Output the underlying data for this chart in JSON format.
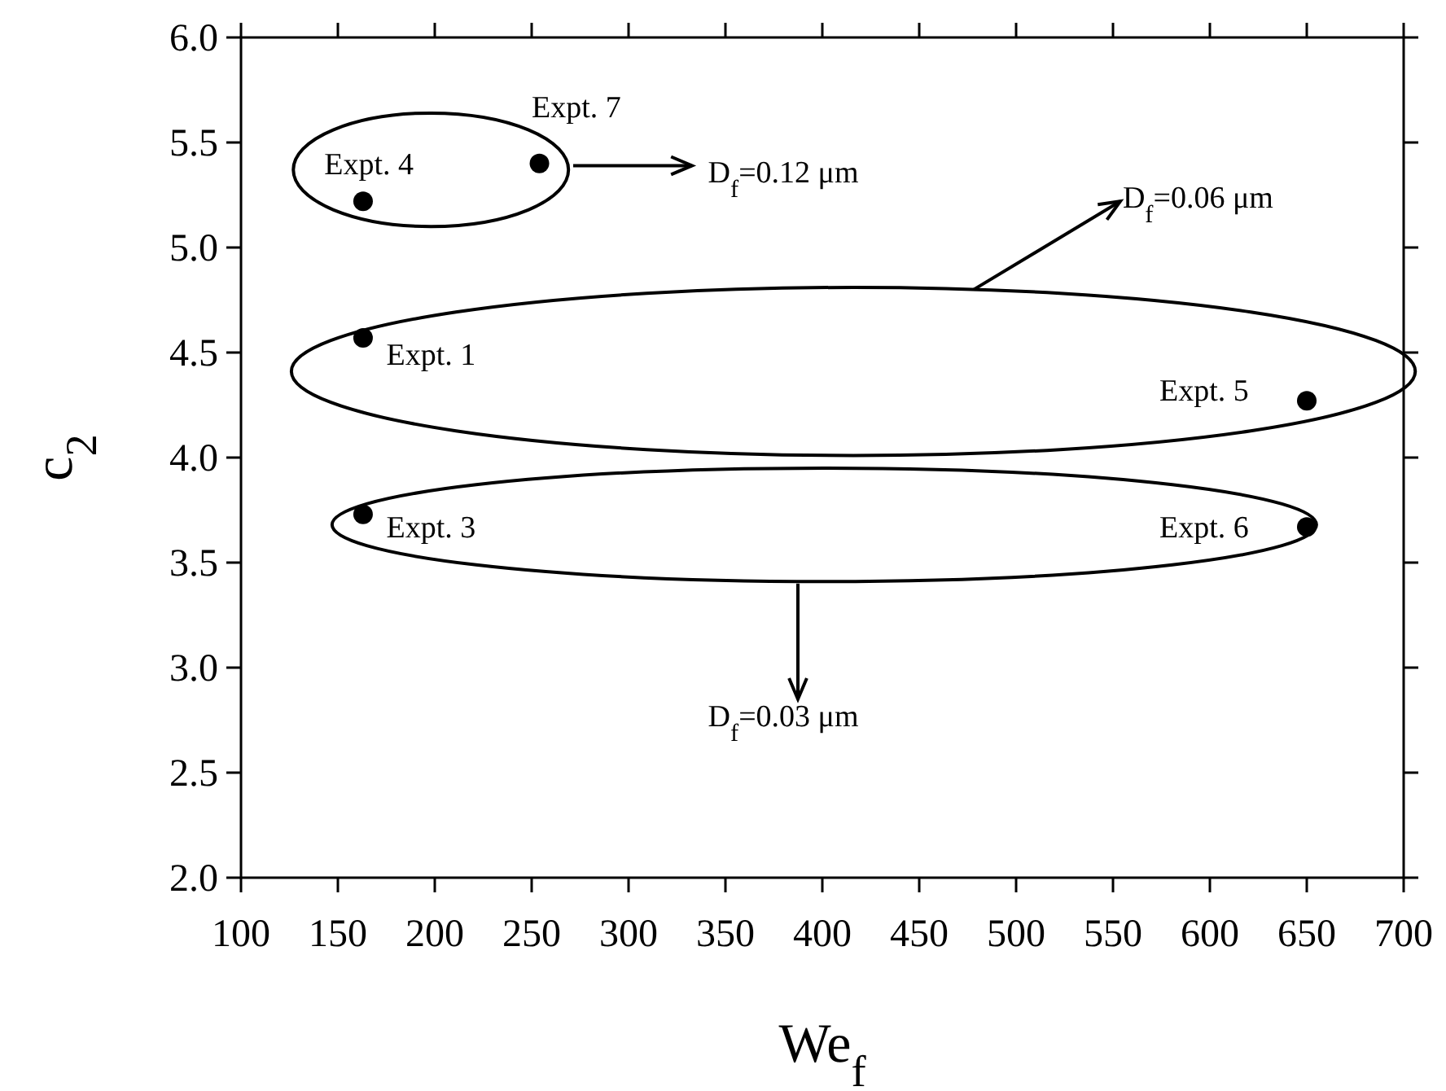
{
  "chart_data": {
    "type": "scatter",
    "xlabel": "We$_{f}$",
    "ylabel": "c$_{2}$",
    "x": [
      163,
      254,
      163,
      650,
      163,
      650
    ],
    "series": [
      {
        "color": "#000000",
        "values": [
          5.22,
          5.4,
          4.57,
          4.27,
          3.73,
          3.67
        ]
      }
    ],
    "marker": "circle",
    "grid": false,
    "xlim": [
      100,
      700
    ],
    "xticks": [
      100,
      150,
      200,
      250,
      300,
      350,
      400,
      450,
      500,
      550,
      600,
      650,
      700
    ],
    "ylim": [
      2,
      6
    ],
    "yticks": [
      {
        "value": 2,
        "label": "2.0"
      },
      {
        "value": 2.5,
        "label": "2.5"
      },
      {
        "value": 3,
        "label": "3.0"
      },
      {
        "value": 3.5,
        "label": "3.5"
      },
      {
        "value": 4,
        "label": "4.0"
      },
      {
        "value": 4.5,
        "label": "4.5"
      },
      {
        "value": 5,
        "label": "5.0"
      },
      {
        "value": 5.5,
        "label": "5.5"
      },
      {
        "value": 6,
        "label": "6.0"
      }
    ],
    "annotations": [
      "Expt. 4",
      "Expt. 7",
      "Expt. 1",
      "Expt. 5",
      "Expt. 3",
      "Expt. 6",
      "D$_{f}$=0.12 μm",
      "D$_{f}$=0.06 μm",
      "D$_{f}$=0.03 μm"
    ]
  }
}
